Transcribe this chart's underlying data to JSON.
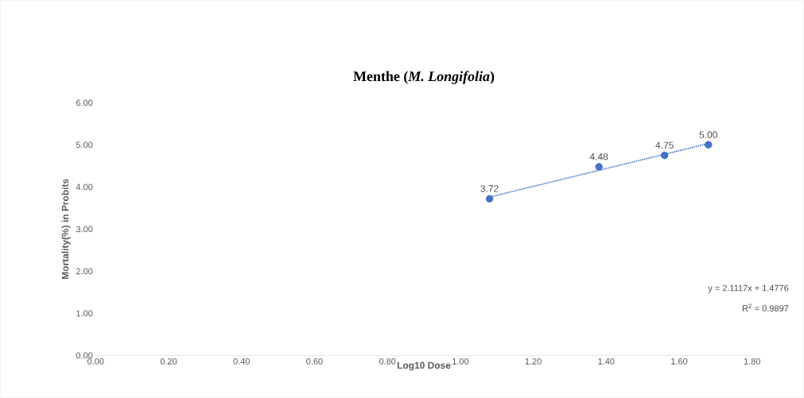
{
  "chart_data": {
    "type": "scatter",
    "title": "Menthe (*M. Longifolia*)",
    "xlabel": "Log10 Dose",
    "ylabel": "Mortality(%) in Probits",
    "xlim": [
      0,
      1.8
    ],
    "ylim": [
      0,
      6
    ],
    "xticks": [
      {
        "value": 0,
        "label": "0.00"
      },
      {
        "value": 0.2,
        "label": "0.20"
      },
      {
        "value": 0.4,
        "label": "0.40"
      },
      {
        "value": 0.6,
        "label": "0.60"
      },
      {
        "value": 0.8,
        "label": "0.80"
      },
      {
        "value": 1,
        "label": "1.00"
      },
      {
        "value": 1.2,
        "label": "1.20"
      },
      {
        "value": 1.4,
        "label": "1.40"
      },
      {
        "value": 1.6,
        "label": "1.60"
      },
      {
        "value": 1.8,
        "label": "1.80"
      }
    ],
    "yticks": [
      {
        "value": 0,
        "label": "0.00"
      },
      {
        "value": 1,
        "label": "1.00"
      },
      {
        "value": 2,
        "label": "2.00"
      },
      {
        "value": 3,
        "label": "3.00"
      },
      {
        "value": 4,
        "label": "4.00"
      },
      {
        "value": 5,
        "label": "5.00"
      },
      {
        "value": 6,
        "label": "6.00"
      }
    ],
    "grid": false,
    "series": [
      {
        "type": "scatter",
        "color": "#4472c4",
        "marker": "circle",
        "x": [
          1.08,
          1.38,
          1.56,
          1.68
        ],
        "values": [
          3.72,
          4.48,
          4.75,
          5.0
        ],
        "value_labels": [
          "3.72",
          "4.48",
          "4.75",
          "5.00"
        ]
      },
      {
        "type": "line",
        "color": "#4472c4",
        "line_style": "dotted",
        "marker": "none",
        "x": [
          1.08,
          1.68
        ],
        "values": [
          3.76,
          5.03
        ]
      }
    ],
    "annotations": [
      "y = 2.1117x + 1.4776",
      "R$^{2}$ = 0.9897"
    ]
  }
}
